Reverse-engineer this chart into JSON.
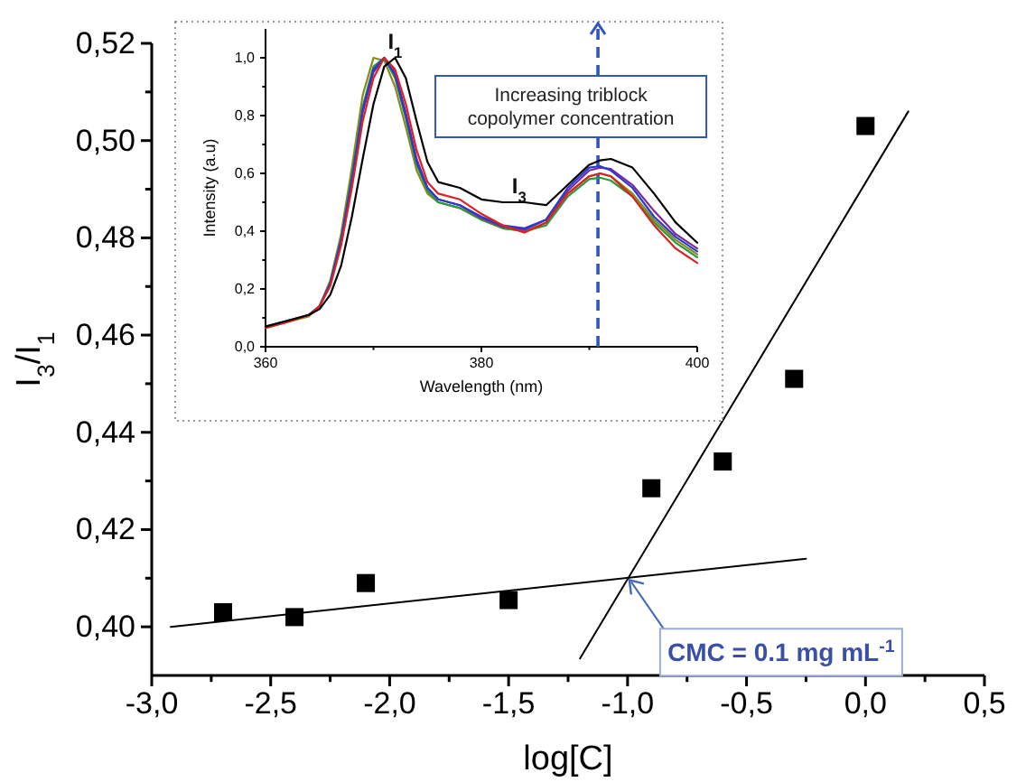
{
  "chart_data": [
    {
      "type": "scatter",
      "xlabel": "log[C]",
      "ylabel": "I$_{3}$/I$_{1}$",
      "xlim": [
        -3.0,
        0.5
      ],
      "ylim": [
        0.39,
        0.52
      ],
      "xticks": [
        {
          "value": -3.0,
          "label": "-3,0"
        },
        {
          "value": -2.75,
          "label": null
        },
        {
          "value": -2.5,
          "label": "-2,5"
        },
        {
          "value": -2.25,
          "label": null
        },
        {
          "value": -2.0,
          "label": "-2,0"
        },
        {
          "value": -1.75,
          "label": null
        },
        {
          "value": -1.5,
          "label": "-1,5"
        },
        {
          "value": -1.25,
          "label": null
        },
        {
          "value": -1.0,
          "label": "-1,0"
        },
        {
          "value": -0.75,
          "label": null
        },
        {
          "value": -0.5,
          "label": "-0,5"
        },
        {
          "value": -0.25,
          "label": null
        },
        {
          "value": 0.0,
          "label": "0,0"
        },
        {
          "value": 0.25,
          "label": null
        },
        {
          "value": 0.5,
          "label": "0,5"
        }
      ],
      "yticks": [
        {
          "value": 0.4,
          "label": "0,40"
        },
        {
          "value": 0.41,
          "label": null
        },
        {
          "value": 0.42,
          "label": "0,42"
        },
        {
          "value": 0.43,
          "label": null
        },
        {
          "value": 0.44,
          "label": "0,44"
        },
        {
          "value": 0.45,
          "label": null
        },
        {
          "value": 0.46,
          "label": "0,46"
        },
        {
          "value": 0.47,
          "label": null
        },
        {
          "value": 0.48,
          "label": "0,48"
        },
        {
          "value": 0.49,
          "label": null
        },
        {
          "value": 0.5,
          "label": "0,50"
        },
        {
          "value": 0.51,
          "label": null
        },
        {
          "value": 0.52,
          "label": "0,52"
        }
      ],
      "series": [
        {
          "marker": "square",
          "color": "#000000",
          "x": [
            -2.7,
            -2.4,
            -2.1,
            -1.5,
            -0.9,
            -0.6,
            -0.3,
            0.0
          ],
          "values": [
            0.403,
            0.402,
            0.409,
            0.4055,
            0.4285,
            0.434,
            0.451,
            0.503
          ]
        },
        {
          "type": "line",
          "color": "#000000",
          "x": [
            -2.92,
            -0.25
          ],
          "values": [
            0.4,
            0.414
          ]
        },
        {
          "type": "line",
          "color": "#000000",
          "x": [
            -1.2,
            0.18
          ],
          "values": [
            0.3935,
            0.506
          ]
        }
      ],
      "annotations": [
        {
          "text": "CMC = 0.1 mg mL$^{-1}$",
          "x": -1.0,
          "y": 0.41
        }
      ]
    },
    {
      "type": "line",
      "xlabel": "Wavelength (nm)",
      "ylabel": "Intensity (a.u)",
      "xlim": [
        360,
        400
      ],
      "ylim": [
        0,
        1.1
      ],
      "xticks": [
        360,
        {
          "value": 370,
          "label": null
        },
        380,
        {
          "value": 390,
          "label": null
        },
        400
      ],
      "yticks": [
        {
          "value": 0,
          "label": "0,0"
        },
        {
          "value": 0.1,
          "label": null
        },
        {
          "value": 0.2,
          "label": "0,2"
        },
        {
          "value": 0.3,
          "label": null
        },
        {
          "value": 0.4,
          "label": "0,4"
        },
        {
          "value": 0.5,
          "label": null
        },
        {
          "value": 0.6,
          "label": "0,6"
        },
        {
          "value": 0.7,
          "label": null
        },
        {
          "value": 0.8,
          "label": "0,8"
        },
        {
          "value": 0.9,
          "label": null
        },
        {
          "value": 1.0,
          "label": "1,0"
        }
      ],
      "x": [
        360,
        362,
        364,
        365,
        366,
        367,
        368,
        369,
        370,
        371,
        372,
        373,
        374,
        375,
        376,
        378,
        380,
        382,
        384,
        386,
        388,
        390,
        391,
        392,
        394,
        396,
        398,
        400
      ],
      "series": [
        {
          "color": "#8a8a1a",
          "values": [
            0.065,
            0.085,
            0.105,
            0.14,
            0.23,
            0.39,
            0.62,
            0.87,
            1.0,
            0.99,
            0.9,
            0.76,
            0.61,
            0.53,
            0.5,
            0.48,
            0.44,
            0.41,
            0.4,
            0.43,
            0.53,
            0.59,
            0.6,
            0.59,
            0.53,
            0.44,
            0.37,
            0.32
          ]
        },
        {
          "color": "#2a9a3a",
          "values": [
            null,
            null,
            null,
            null,
            0.22,
            0.37,
            0.59,
            0.83,
            0.97,
            1.0,
            0.93,
            0.79,
            0.63,
            0.54,
            0.5,
            0.48,
            0.44,
            0.41,
            0.4,
            0.42,
            0.52,
            0.58,
            0.585,
            0.575,
            0.52,
            0.43,
            0.36,
            0.31
          ]
        },
        {
          "color": "#7a2a9a",
          "values": [
            0.07,
            0.09,
            0.11,
            0.14,
            0.22,
            0.36,
            0.57,
            0.81,
            0.95,
            1.0,
            0.95,
            0.81,
            0.65,
            0.55,
            0.51,
            0.49,
            0.445,
            0.415,
            0.405,
            0.44,
            0.54,
            0.61,
            0.62,
            0.615,
            0.56,
            0.47,
            0.39,
            0.34
          ]
        },
        {
          "color": "#2a3ad0",
          "values": [
            null,
            null,
            0.11,
            0.14,
            0.22,
            0.37,
            0.58,
            0.82,
            0.96,
            1.0,
            0.94,
            0.8,
            0.64,
            0.55,
            0.51,
            0.49,
            0.45,
            0.42,
            0.41,
            0.44,
            0.55,
            0.62,
            0.625,
            0.61,
            0.55,
            0.45,
            0.38,
            0.33
          ]
        },
        {
          "color": "#e02020",
          "values": [
            0.065,
            0.085,
            0.11,
            0.14,
            0.21,
            0.35,
            0.55,
            0.78,
            0.93,
            1.0,
            0.96,
            0.84,
            0.68,
            0.57,
            0.53,
            0.51,
            0.46,
            0.42,
            0.395,
            0.43,
            0.53,
            0.59,
            0.6,
            0.59,
            0.52,
            0.42,
            0.34,
            0.29
          ]
        },
        {
          "color": "#000000",
          "values": [
            0.07,
            0.09,
            0.11,
            0.13,
            0.18,
            0.28,
            0.45,
            0.65,
            0.84,
            0.97,
            1.0,
            0.93,
            0.78,
            0.64,
            0.57,
            0.55,
            0.51,
            0.5,
            0.5,
            0.49,
            0.56,
            0.63,
            0.645,
            0.65,
            0.62,
            0.53,
            0.43,
            0.36
          ]
        }
      ],
      "ref_lines": [
        {
          "axis": "x",
          "value": 390.8,
          "label": "Increasing triblock copolymer concentration",
          "color": "#3355bb",
          "line_style": "dashed"
        }
      ],
      "annotations": [
        {
          "text": "I$_{1}$",
          "x": 372,
          "y": 1.0
        },
        {
          "text": "I$_{3}$",
          "x": 383.5,
          "y": 0.5
        }
      ]
    }
  ]
}
